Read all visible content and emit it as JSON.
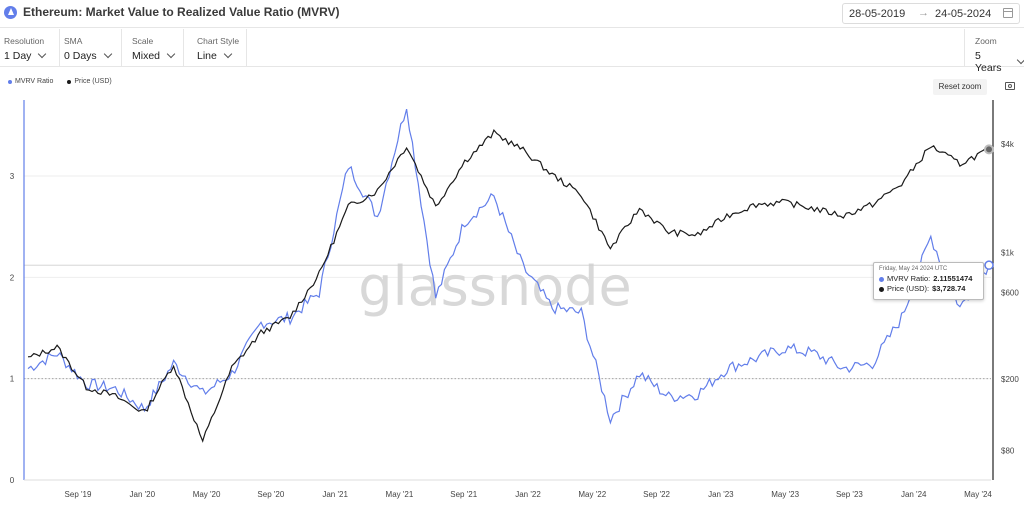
{
  "header": {
    "title": "Ethereum: Market Value to Realized Value Ratio (MVRV)",
    "date_from": "28-05-2019",
    "date_to": "24-05-2024"
  },
  "controls": {
    "resolution": {
      "label": "Resolution",
      "value": "1 Day"
    },
    "sma": {
      "label": "SMA",
      "value": "0 Days"
    },
    "scale": {
      "label": "Scale",
      "value": "Mixed"
    },
    "chart_style": {
      "label": "Chart Style",
      "value": "Line"
    },
    "zoom": {
      "label": "Zoom",
      "value": "5 Years"
    }
  },
  "reset_zoom": "Reset zoom",
  "watermark": "glassnode",
  "colors": {
    "mvrv": "#627eea",
    "price": "#1a1a1a",
    "accent": "#627eea"
  },
  "tooltip": {
    "date": "Friday, May 24 2024 UTC",
    "mvrv_label": "MVRV Ratio:",
    "mvrv_value": "2.11551474",
    "price_label": "Price (USD):",
    "price_value": "$3,728.74"
  },
  "chart_data": {
    "type": "line",
    "title": "Ethereum: Market Value to Realized Value Ratio (MVRV)",
    "x_ticks": [
      "Sep '19",
      "Jan '20",
      "May '20",
      "Sep '20",
      "Jan '21",
      "May '21",
      "Sep '21",
      "Jan '22",
      "May '22",
      "Sep '22",
      "Jan '23",
      "May '23",
      "Sep '23",
      "Jan '24",
      "May '24"
    ],
    "y_left_ticks": [
      "0",
      "1",
      "2",
      "3"
    ],
    "y_left_range": [
      0,
      3.75
    ],
    "y_right_ticks": [
      "$80",
      "$200",
      "$600",
      "$1k",
      "$4k"
    ],
    "y_right_scale": "log",
    "reference_line": 1,
    "legend_position": "top-left",
    "x": [
      "2019-05",
      "2019-07",
      "2019-09",
      "2019-11",
      "2020-01",
      "2020-03",
      "2020-05",
      "2020-07",
      "2020-09",
      "2020-11",
      "2021-01",
      "2021-02",
      "2021-04",
      "2021-05",
      "2021-07",
      "2021-09",
      "2021-11",
      "2022-01",
      "2022-03",
      "2022-05",
      "2022-06",
      "2022-08",
      "2022-10",
      "2022-12",
      "2023-02",
      "2023-04",
      "2023-06",
      "2023-08",
      "2023-10",
      "2023-12",
      "2024-02",
      "2024-03",
      "2024-04",
      "2024-05"
    ],
    "series": [
      {
        "name": "MVRV Ratio",
        "values": [
          1.1,
          1.25,
          0.95,
          0.9,
          0.7,
          1.15,
          0.85,
          1.05,
          1.55,
          1.6,
          1.85,
          3.1,
          2.6,
          3.7,
          1.8,
          2.55,
          2.8,
          2.1,
          1.7,
          1.65,
          0.6,
          1.05,
          0.82,
          0.85,
          1.1,
          1.2,
          1.3,
          1.25,
          1.1,
          1.15,
          1.6,
          2.4,
          1.7,
          2.12
        ]
      },
      {
        "name": "Price (USD)",
        "values": [
          260,
          300,
          180,
          160,
          130,
          240,
          90,
          230,
          360,
          440,
          760,
          1800,
          2200,
          3900,
          1800,
          3200,
          4600,
          3700,
          2700,
          2100,
          1050,
          1750,
          1300,
          1250,
          1600,
          1850,
          1900,
          1750,
          1600,
          1850,
          2400,
          3900,
          3100,
          3728.74
        ]
      }
    ]
  }
}
